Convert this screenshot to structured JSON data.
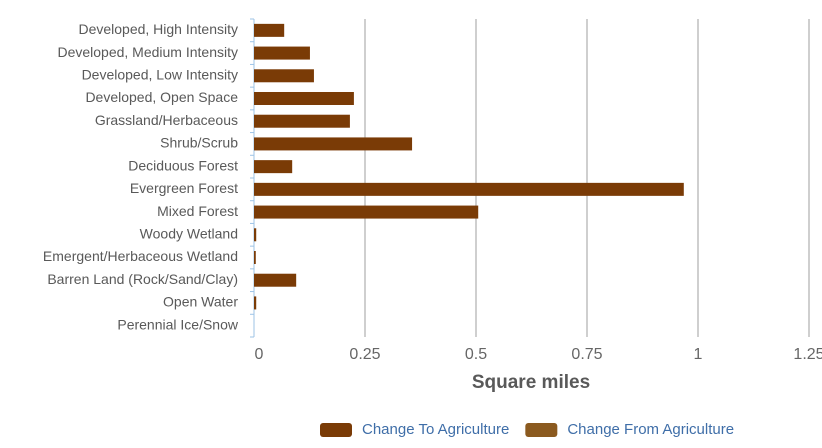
{
  "chart_data": {
    "type": "hbar",
    "x_label": "Square miles",
    "categories": [
      "Developed, High Intensity",
      "Developed, Medium Intensity",
      "Developed, Low Intensity",
      "Developed, Open Space",
      "Grassland/Herbaceous",
      "Shrub/Scrub",
      "Deciduous Forest",
      "Evergreen Forest",
      "Mixed Forest",
      "Woody Wetland",
      "Emergent/Herbaceous Wetland",
      "Barren Land (Rock/Sand/Clay)",
      "Open Water",
      "Perennial Ice/Snow"
    ],
    "series": [
      {
        "name": "Change To Agriculture",
        "color": "#7a3b06",
        "values": [
          0.068,
          0.126,
          0.135,
          0.225,
          0.216,
          0.356,
          0.086,
          0.968,
          0.505,
          0.005,
          0.004,
          0.095,
          0.005,
          0
        ]
      },
      {
        "name": "Change From Agriculture",
        "color": "#8b5a1f",
        "values": [
          0,
          0,
          0,
          0,
          0,
          0,
          0,
          0,
          0,
          0,
          0,
          0,
          0,
          0
        ]
      }
    ],
    "xlim": [
      0,
      1.25
    ],
    "xticks": [
      0,
      0.25,
      0.5,
      0.75,
      1,
      1.25
    ],
    "grid": true
  }
}
